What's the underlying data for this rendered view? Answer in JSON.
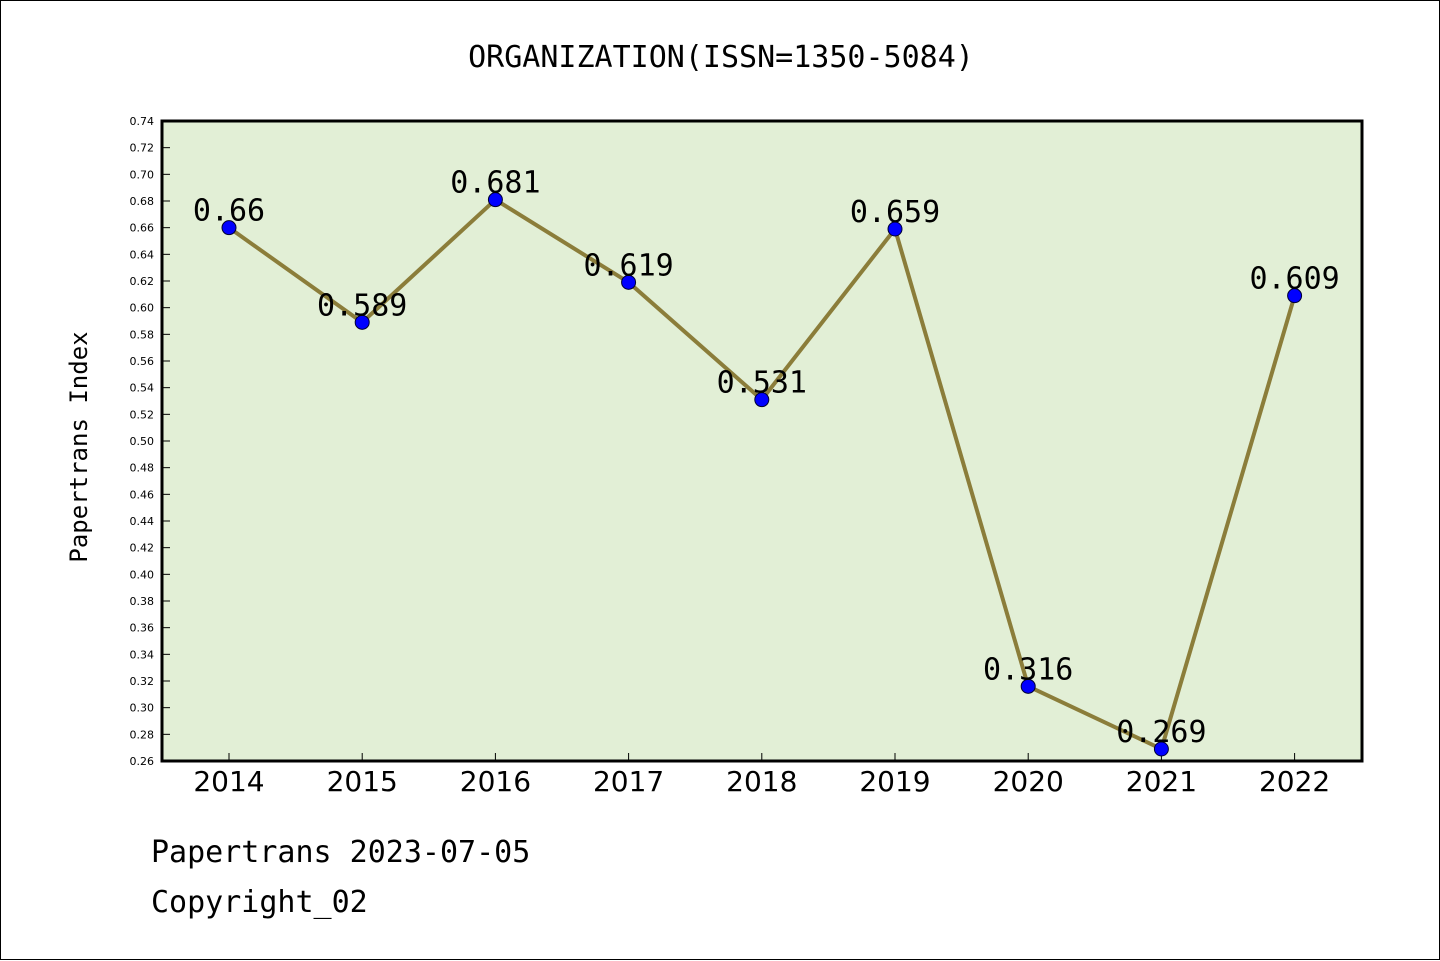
{
  "chart_data": {
    "type": "line",
    "title": "ORGANIZATION(ISSN=1350-5084)",
    "xlabel": "",
    "ylabel": "Papertrans Index",
    "categories": [
      "2014",
      "2015",
      "2016",
      "2017",
      "2018",
      "2019",
      "2020",
      "2021",
      "2022"
    ],
    "series": [
      {
        "values": [
          0.66,
          0.589,
          0.681,
          0.619,
          0.531,
          0.659,
          0.316,
          0.269,
          0.609
        ],
        "data_labels": [
          "0.66",
          "0.589",
          "0.681",
          "0.619",
          "0.531",
          "0.659",
          "0.316",
          "0.269",
          "0.609"
        ]
      }
    ],
    "ylim": [
      0.26,
      0.74
    ],
    "yticks": [
      "0.26",
      "0.28",
      "0.30",
      "0.32",
      "0.34",
      "0.36",
      "0.38",
      "0.40",
      "0.42",
      "0.44",
      "0.46",
      "0.48",
      "0.50",
      "0.52",
      "0.54",
      "0.56",
      "0.58",
      "0.60",
      "0.62",
      "0.64",
      "0.66",
      "0.68",
      "0.70",
      "0.72",
      "0.74"
    ],
    "grid": false,
    "colors": {
      "plot_background": "#e2efd6",
      "line": "#8b7d3a",
      "marker": "#0000ff"
    }
  },
  "footer": {
    "line1": "Papertrans 2023-07-05",
    "line2": "Copyright_02"
  }
}
